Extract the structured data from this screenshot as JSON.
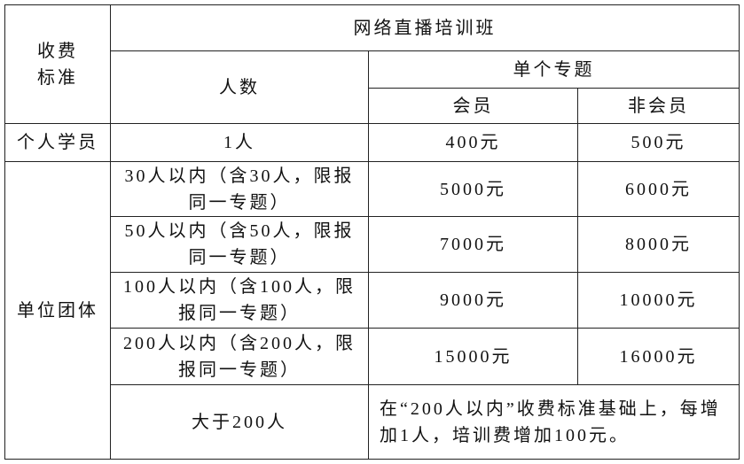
{
  "table": {
    "corner": "收费标准",
    "program": "网络直播培训班",
    "headcount_header": "人数",
    "single_topic": "单个专题",
    "member": "会员",
    "non_member": "非会员",
    "individual": {
      "category": "个人学员",
      "count": "1人",
      "member_price": "400元",
      "non_member_price": "500元"
    },
    "group_category": "单位团体",
    "group_rows": [
      {
        "count": "30人以内（含30人，限报同一专题）",
        "member_price": "5000元",
        "non_member_price": "6000元"
      },
      {
        "count": "50人以内（含50人，限报同一专题）",
        "member_price": "7000元",
        "non_member_price": "8000元"
      },
      {
        "count": "100人以内（含100人，限报同一专题）",
        "member_price": "9000元",
        "non_member_price": "10000元"
      },
      {
        "count": "200人以内（含200人，限报同一专题）",
        "member_price": "15000元",
        "non_member_price": "16000元"
      }
    ],
    "over": {
      "count": "大于200人",
      "note": "在“200人以内”收费标准基础上，每增加1人，培训费增加100元。"
    }
  }
}
